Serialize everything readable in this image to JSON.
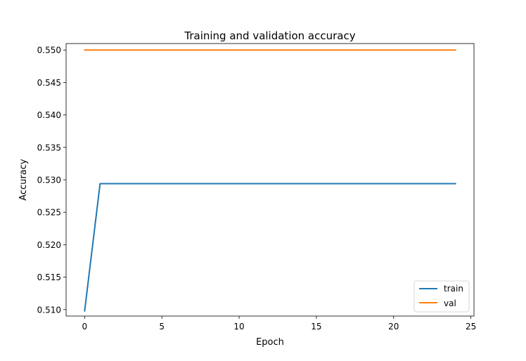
{
  "chart_data": {
    "type": "line",
    "title": "Training and validation accuracy",
    "xlabel": "Epoch",
    "ylabel": "Accuracy",
    "xlim": [
      -1.2,
      25.2
    ],
    "ylim": [
      0.509,
      0.551
    ],
    "x_ticks": [
      0,
      5,
      10,
      15,
      20,
      25
    ],
    "y_ticks": [
      0.51,
      0.515,
      0.52,
      0.525,
      0.53,
      0.535,
      0.54,
      0.545,
      0.55
    ],
    "x_tick_labels": [
      "0",
      "5",
      "10",
      "15",
      "20",
      "25"
    ],
    "y_tick_labels": [
      "0.510",
      "0.515",
      "0.520",
      "0.525",
      "0.530",
      "0.535",
      "0.540",
      "0.545",
      "0.550"
    ],
    "grid": false,
    "legend_position": "lower-right",
    "x": [
      0,
      1,
      2,
      3,
      4,
      5,
      6,
      7,
      8,
      9,
      10,
      11,
      12,
      13,
      14,
      15,
      16,
      17,
      18,
      19,
      20,
      21,
      22,
      23,
      24
    ],
    "series": [
      {
        "name": "train",
        "color": "#1f77b4",
        "values": [
          0.5098,
          0.5294,
          0.5294,
          0.5294,
          0.5294,
          0.5294,
          0.5294,
          0.5294,
          0.5294,
          0.5294,
          0.5294,
          0.5294,
          0.5294,
          0.5294,
          0.5294,
          0.5294,
          0.5294,
          0.5294,
          0.5294,
          0.5294,
          0.5294,
          0.5294,
          0.5294,
          0.5294,
          0.5294
        ]
      },
      {
        "name": "val",
        "color": "#ff7f0e",
        "values": [
          0.55,
          0.55,
          0.55,
          0.55,
          0.55,
          0.55,
          0.55,
          0.55,
          0.55,
          0.55,
          0.55,
          0.55,
          0.55,
          0.55,
          0.55,
          0.55,
          0.55,
          0.55,
          0.55,
          0.55,
          0.55,
          0.55,
          0.55,
          0.55,
          0.55
        ]
      }
    ]
  }
}
